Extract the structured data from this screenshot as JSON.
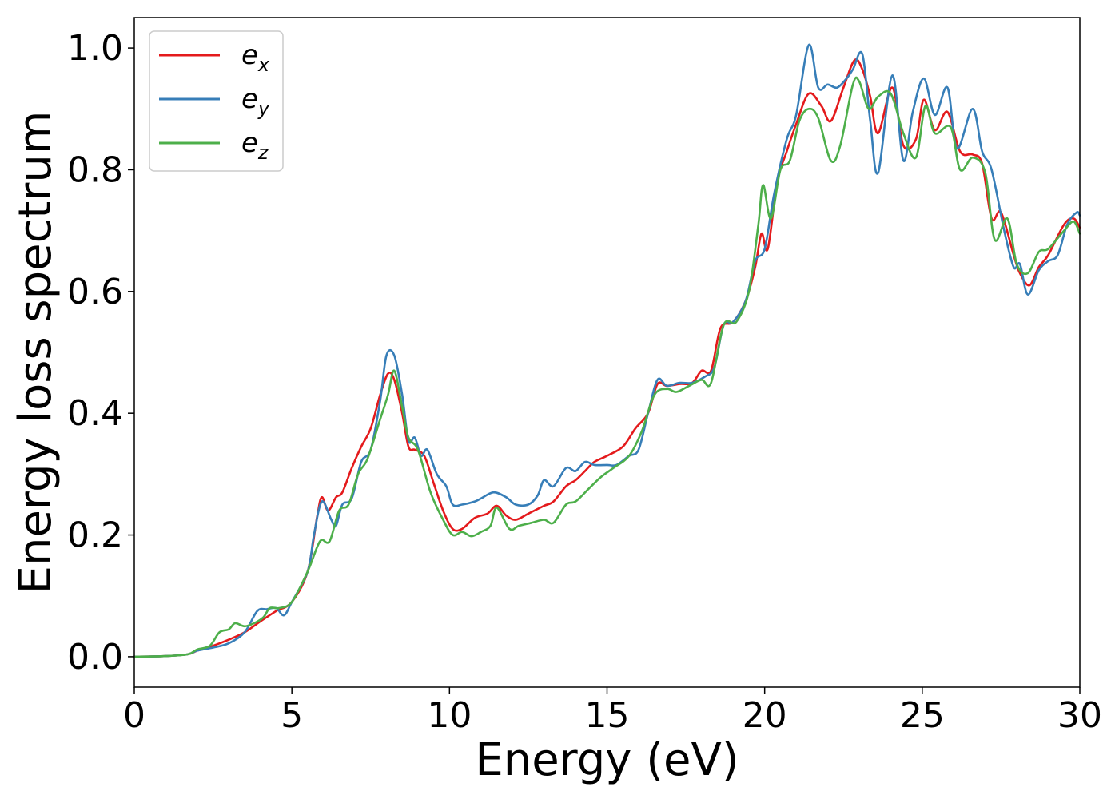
{
  "chart_data": {
    "type": "line",
    "xlabel": "Energy (eV)",
    "ylabel": "Energy loss spectrum",
    "xlim": [
      0,
      30
    ],
    "ylim": [
      -0.05,
      1.05
    ],
    "xticks": [
      0,
      5,
      10,
      15,
      20,
      25,
      30
    ],
    "xtick_labels": [
      "0",
      "5",
      "10",
      "15",
      "20",
      "25",
      "30"
    ],
    "yticks": [
      0.0,
      0.2,
      0.4,
      0.6,
      0.8,
      1.0
    ],
    "ytick_labels": [
      "0.0",
      "0.2",
      "0.4",
      "0.6",
      "0.8",
      "1.0"
    ],
    "grid": false,
    "legend_position": "top-left",
    "series": [
      {
        "name": "e_x",
        "label_base": "e",
        "label_sub": "x",
        "color": "#e41a1c",
        "points": [
          [
            0,
            0
          ],
          [
            1,
            0.001
          ],
          [
            1.7,
            0.004
          ],
          [
            2,
            0.01
          ],
          [
            2.5,
            0.018
          ],
          [
            3,
            0.028
          ],
          [
            3.5,
            0.04
          ],
          [
            4,
            0.058
          ],
          [
            4.5,
            0.075
          ],
          [
            5,
            0.09
          ],
          [
            5.5,
            0.14
          ],
          [
            5.8,
            0.23
          ],
          [
            5.95,
            0.262
          ],
          [
            6.15,
            0.24
          ],
          [
            6.4,
            0.262
          ],
          [
            6.6,
            0.27
          ],
          [
            6.9,
            0.31
          ],
          [
            7.2,
            0.345
          ],
          [
            7.5,
            0.375
          ],
          [
            7.8,
            0.43
          ],
          [
            8.05,
            0.465
          ],
          [
            8.25,
            0.455
          ],
          [
            8.5,
            0.4
          ],
          [
            8.7,
            0.345
          ],
          [
            8.9,
            0.34
          ],
          [
            9.2,
            0.33
          ],
          [
            9.5,
            0.285
          ],
          [
            9.8,
            0.24
          ],
          [
            10.1,
            0.21
          ],
          [
            10.4,
            0.21
          ],
          [
            10.8,
            0.228
          ],
          [
            11.2,
            0.235
          ],
          [
            11.5,
            0.248
          ],
          [
            11.8,
            0.232
          ],
          [
            12.1,
            0.225
          ],
          [
            12.5,
            0.235
          ],
          [
            13.0,
            0.248
          ],
          [
            13.3,
            0.255
          ],
          [
            13.7,
            0.28
          ],
          [
            14.0,
            0.29
          ],
          [
            14.3,
            0.305
          ],
          [
            14.6,
            0.32
          ],
          [
            15.0,
            0.33
          ],
          [
            15.5,
            0.345
          ],
          [
            15.9,
            0.375
          ],
          [
            16.3,
            0.4
          ],
          [
            16.6,
            0.448
          ],
          [
            16.9,
            0.445
          ],
          [
            17.3,
            0.448
          ],
          [
            17.7,
            0.45
          ],
          [
            18.0,
            0.47
          ],
          [
            18.3,
            0.47
          ],
          [
            18.6,
            0.54
          ],
          [
            19.0,
            0.55
          ],
          [
            19.4,
            0.585
          ],
          [
            19.7,
            0.64
          ],
          [
            19.9,
            0.695
          ],
          [
            20.1,
            0.67
          ],
          [
            20.4,
            0.78
          ],
          [
            20.7,
            0.83
          ],
          [
            21.0,
            0.875
          ],
          [
            21.4,
            0.925
          ],
          [
            21.8,
            0.905
          ],
          [
            22.1,
            0.88
          ],
          [
            22.5,
            0.935
          ],
          [
            22.85,
            0.98
          ],
          [
            23.1,
            0.965
          ],
          [
            23.35,
            0.92
          ],
          [
            23.6,
            0.86
          ],
          [
            24.05,
            0.935
          ],
          [
            24.4,
            0.84
          ],
          [
            24.8,
            0.85
          ],
          [
            25.05,
            0.915
          ],
          [
            25.4,
            0.865
          ],
          [
            25.8,
            0.895
          ],
          [
            26.2,
            0.83
          ],
          [
            26.6,
            0.825
          ],
          [
            26.9,
            0.81
          ],
          [
            27.2,
            0.72
          ],
          [
            27.5,
            0.73
          ],
          [
            27.9,
            0.66
          ],
          [
            28.1,
            0.63
          ],
          [
            28.4,
            0.61
          ],
          [
            28.7,
            0.64
          ],
          [
            29.0,
            0.66
          ],
          [
            29.5,
            0.71
          ],
          [
            29.8,
            0.72
          ],
          [
            30,
            0.705
          ]
        ]
      },
      {
        "name": "e_y",
        "label_base": "e",
        "label_sub": "y",
        "color": "#377eb8",
        "points": [
          [
            0,
            0
          ],
          [
            1,
            0.001
          ],
          [
            1.7,
            0.004
          ],
          [
            2,
            0.01
          ],
          [
            2.5,
            0.015
          ],
          [
            3,
            0.022
          ],
          [
            3.5,
            0.04
          ],
          [
            3.9,
            0.075
          ],
          [
            4.2,
            0.078
          ],
          [
            4.5,
            0.08
          ],
          [
            4.75,
            0.068
          ],
          [
            5,
            0.09
          ],
          [
            5.5,
            0.14
          ],
          [
            5.7,
            0.2
          ],
          [
            5.95,
            0.255
          ],
          [
            6.25,
            0.225
          ],
          [
            6.4,
            0.215
          ],
          [
            6.6,
            0.25
          ],
          [
            6.9,
            0.26
          ],
          [
            7.2,
            0.32
          ],
          [
            7.5,
            0.34
          ],
          [
            7.8,
            0.42
          ],
          [
            8.0,
            0.495
          ],
          [
            8.25,
            0.495
          ],
          [
            8.5,
            0.43
          ],
          [
            8.7,
            0.355
          ],
          [
            8.9,
            0.36
          ],
          [
            9.1,
            0.33
          ],
          [
            9.3,
            0.34
          ],
          [
            9.6,
            0.3
          ],
          [
            9.9,
            0.28
          ],
          [
            10.1,
            0.25
          ],
          [
            10.4,
            0.25
          ],
          [
            10.8,
            0.255
          ],
          [
            11.0,
            0.26
          ],
          [
            11.4,
            0.27
          ],
          [
            11.8,
            0.262
          ],
          [
            12.1,
            0.25
          ],
          [
            12.5,
            0.25
          ],
          [
            12.8,
            0.265
          ],
          [
            13.0,
            0.29
          ],
          [
            13.3,
            0.28
          ],
          [
            13.7,
            0.31
          ],
          [
            14.0,
            0.305
          ],
          [
            14.3,
            0.32
          ],
          [
            14.6,
            0.315
          ],
          [
            15.0,
            0.315
          ],
          [
            15.3,
            0.315
          ],
          [
            15.7,
            0.33
          ],
          [
            16.0,
            0.34
          ],
          [
            16.3,
            0.4
          ],
          [
            16.6,
            0.455
          ],
          [
            16.9,
            0.445
          ],
          [
            17.3,
            0.45
          ],
          [
            17.7,
            0.45
          ],
          [
            18.1,
            0.46
          ],
          [
            18.4,
            0.475
          ],
          [
            18.7,
            0.545
          ],
          [
            19.0,
            0.55
          ],
          [
            19.4,
            0.585
          ],
          [
            19.7,
            0.65
          ],
          [
            20.0,
            0.67
          ],
          [
            20.3,
            0.76
          ],
          [
            20.7,
            0.85
          ],
          [
            21.0,
            0.89
          ],
          [
            21.4,
            1.005
          ],
          [
            21.7,
            0.935
          ],
          [
            22.0,
            0.94
          ],
          [
            22.3,
            0.935
          ],
          [
            22.6,
            0.95
          ],
          [
            22.8,
            0.965
          ],
          [
            23.1,
            0.99
          ],
          [
            23.35,
            0.88
          ],
          [
            23.6,
            0.795
          ],
          [
            24.05,
            0.955
          ],
          [
            24.4,
            0.815
          ],
          [
            24.7,
            0.895
          ],
          [
            25.05,
            0.95
          ],
          [
            25.4,
            0.89
          ],
          [
            25.8,
            0.935
          ],
          [
            26.1,
            0.835
          ],
          [
            26.6,
            0.9
          ],
          [
            26.9,
            0.83
          ],
          [
            27.2,
            0.8
          ],
          [
            27.6,
            0.7
          ],
          [
            27.9,
            0.64
          ],
          [
            28.1,
            0.645
          ],
          [
            28.35,
            0.595
          ],
          [
            28.7,
            0.635
          ],
          [
            29.0,
            0.65
          ],
          [
            29.3,
            0.66
          ],
          [
            29.6,
            0.71
          ],
          [
            29.9,
            0.73
          ],
          [
            30,
            0.725
          ]
        ]
      },
      {
        "name": "e_z",
        "label_base": "e",
        "label_sub": "z",
        "color": "#4daf4a",
        "points": [
          [
            0,
            0
          ],
          [
            1,
            0.001
          ],
          [
            1.7,
            0.004
          ],
          [
            2,
            0.012
          ],
          [
            2.4,
            0.018
          ],
          [
            2.7,
            0.04
          ],
          [
            3.0,
            0.045
          ],
          [
            3.2,
            0.055
          ],
          [
            3.5,
            0.05
          ],
          [
            3.8,
            0.055
          ],
          [
            4.1,
            0.065
          ],
          [
            4.3,
            0.08
          ],
          [
            4.6,
            0.08
          ],
          [
            5.0,
            0.09
          ],
          [
            5.5,
            0.14
          ],
          [
            5.8,
            0.18
          ],
          [
            5.95,
            0.192
          ],
          [
            6.2,
            0.19
          ],
          [
            6.5,
            0.24
          ],
          [
            6.8,
            0.25
          ],
          [
            7.1,
            0.3
          ],
          [
            7.4,
            0.325
          ],
          [
            7.8,
            0.39
          ],
          [
            8.05,
            0.43
          ],
          [
            8.25,
            0.47
          ],
          [
            8.5,
            0.41
          ],
          [
            8.7,
            0.36
          ],
          [
            9.0,
            0.34
          ],
          [
            9.4,
            0.27
          ],
          [
            9.8,
            0.225
          ],
          [
            10.1,
            0.2
          ],
          [
            10.4,
            0.205
          ],
          [
            10.7,
            0.198
          ],
          [
            11.0,
            0.205
          ],
          [
            11.3,
            0.215
          ],
          [
            11.5,
            0.245
          ],
          [
            11.9,
            0.21
          ],
          [
            12.2,
            0.215
          ],
          [
            12.6,
            0.22
          ],
          [
            13.0,
            0.225
          ],
          [
            13.3,
            0.22
          ],
          [
            13.7,
            0.25
          ],
          [
            14.0,
            0.255
          ],
          [
            14.4,
            0.275
          ],
          [
            14.8,
            0.295
          ],
          [
            15.2,
            0.31
          ],
          [
            15.7,
            0.33
          ],
          [
            16.1,
            0.37
          ],
          [
            16.5,
            0.43
          ],
          [
            16.9,
            0.44
          ],
          [
            17.2,
            0.435
          ],
          [
            17.6,
            0.445
          ],
          [
            18.0,
            0.455
          ],
          [
            18.3,
            0.45
          ],
          [
            18.7,
            0.545
          ],
          [
            19.1,
            0.55
          ],
          [
            19.5,
            0.6
          ],
          [
            19.8,
            0.71
          ],
          [
            19.95,
            0.775
          ],
          [
            20.2,
            0.72
          ],
          [
            20.5,
            0.8
          ],
          [
            20.8,
            0.815
          ],
          [
            21.1,
            0.88
          ],
          [
            21.4,
            0.9
          ],
          [
            21.7,
            0.885
          ],
          [
            22.1,
            0.815
          ],
          [
            22.4,
            0.84
          ],
          [
            22.8,
            0.94
          ],
          [
            23.0,
            0.945
          ],
          [
            23.3,
            0.9
          ],
          [
            23.6,
            0.92
          ],
          [
            24.0,
            0.925
          ],
          [
            24.4,
            0.86
          ],
          [
            24.8,
            0.82
          ],
          [
            25.1,
            0.905
          ],
          [
            25.4,
            0.86
          ],
          [
            25.9,
            0.87
          ],
          [
            26.2,
            0.8
          ],
          [
            26.6,
            0.82
          ],
          [
            27.0,
            0.795
          ],
          [
            27.3,
            0.685
          ],
          [
            27.7,
            0.72
          ],
          [
            28.0,
            0.645
          ],
          [
            28.35,
            0.63
          ],
          [
            28.7,
            0.665
          ],
          [
            29.0,
            0.67
          ],
          [
            29.5,
            0.7
          ],
          [
            29.8,
            0.715
          ],
          [
            30,
            0.695
          ]
        ]
      }
    ]
  }
}
